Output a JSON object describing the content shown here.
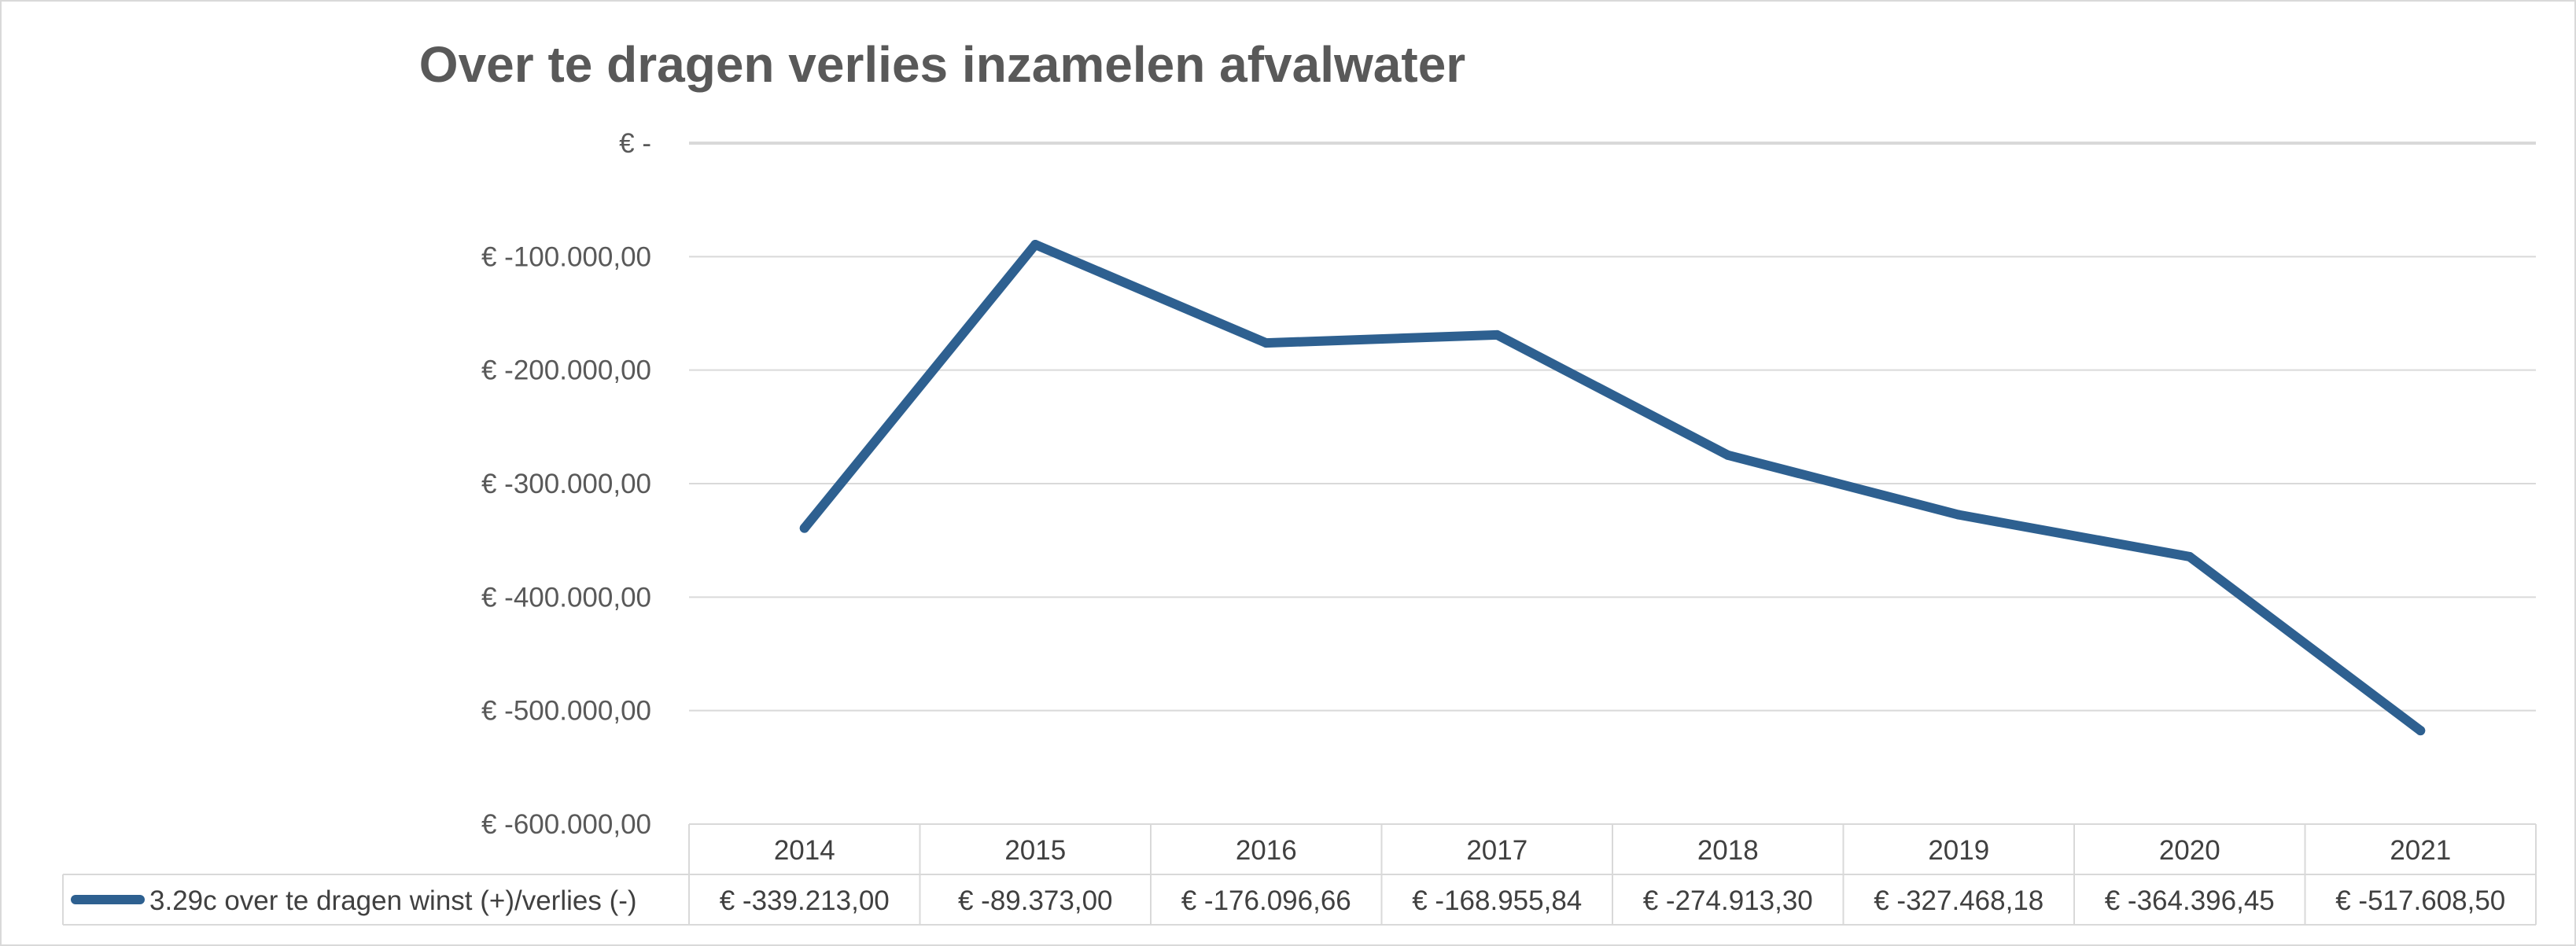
{
  "chart_data": {
    "type": "line",
    "title": "Over te dragen verlies inzamelen afvalwater",
    "xlabel": "",
    "ylabel": "",
    "categories": [
      "2014",
      "2015",
      "2016",
      "2017",
      "2018",
      "2019",
      "2020",
      "2021"
    ],
    "series": [
      {
        "name": "3.29c over te dragen winst (+)/verlies (-)",
        "values": [
          -339213.0,
          -89373.0,
          -176096.66,
          -168955.84,
          -274913.3,
          -327468.18,
          -364396.45,
          -517608.5
        ],
        "value_labels": [
          "€ -339.213,00",
          "€ -89.373,00",
          "€ -176.096,66",
          "€ -168.955,84",
          "€ -274.913,30",
          "€ -327.468,18",
          "€ -364.396,45",
          "€ -517.608,50"
        ],
        "color": "#2e6090"
      }
    ],
    "ylim": [
      -600000,
      0
    ],
    "y_ticks": [
      0,
      -100000,
      -200000,
      -300000,
      -400000,
      -500000,
      -600000
    ],
    "y_tick_labels": [
      "€ -",
      "€ -100.000,00",
      "€ -200.000,00",
      "€ -300.000,00",
      "€ -400.000,00",
      "€ -500.000,00",
      "€ -600.000,00"
    ],
    "grid": true,
    "legend": "data-table",
    "gridline_color": "#d9d9d9",
    "text_color": "#595959"
  }
}
